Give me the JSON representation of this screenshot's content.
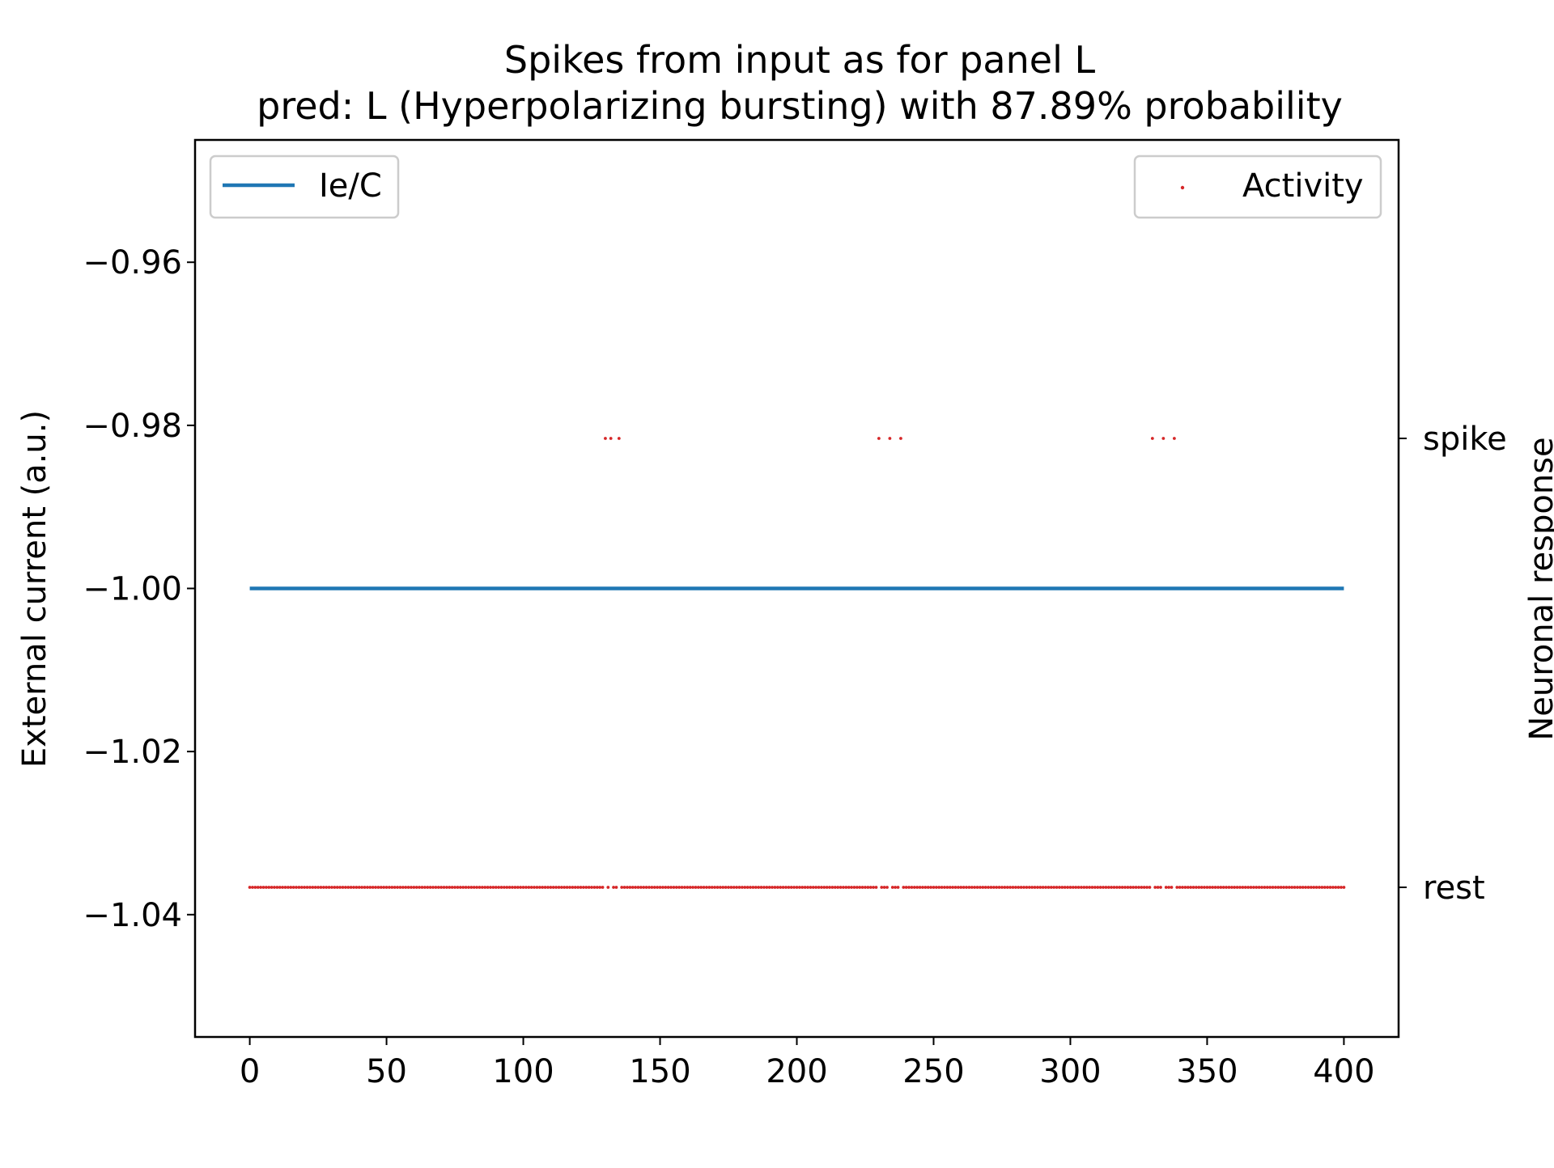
{
  "chart_data": {
    "type": "line",
    "title": "Spikes from input as for panel L",
    "subtitle": "pred: L (Hyperpolarizing bursting) with 87.89% probability",
    "xlabel": "",
    "ylabel": "External current (a.u.)",
    "y2label": "Neuronal response",
    "xlim": [
      -20,
      420
    ],
    "ylim": [
      -1.055,
      -0.945
    ],
    "x_ticks": [
      0,
      50,
      100,
      150,
      200,
      250,
      300,
      350,
      400
    ],
    "y_ticks": [
      -0.96,
      -0.98,
      -1.0,
      -1.02,
      -1.04
    ],
    "y_tick_labels": [
      "−0.96",
      "−0.98",
      "−1.00",
      "−1.02",
      "−1.04"
    ],
    "y2_ticks": [
      "spike",
      "rest"
    ],
    "grid": false,
    "series": [
      {
        "name": "Ie/C",
        "kind": "line",
        "color": "#1f77b4",
        "x": [
          0,
          400
        ],
        "y": [
          -1.0,
          -1.0
        ]
      },
      {
        "name": "Activity",
        "kind": "scatter",
        "color": "#d62728",
        "axis": "right",
        "x_range": [
          0,
          400
        ],
        "spike_times": [
          130,
          132,
          135,
          230,
          234,
          238,
          330,
          334,
          338
        ],
        "values": "rest at all time steps except spike_times"
      }
    ],
    "legends": [
      {
        "entry": "Ie/C",
        "placement": "upper left"
      },
      {
        "entry": "Activity",
        "placement": "upper right"
      }
    ]
  }
}
